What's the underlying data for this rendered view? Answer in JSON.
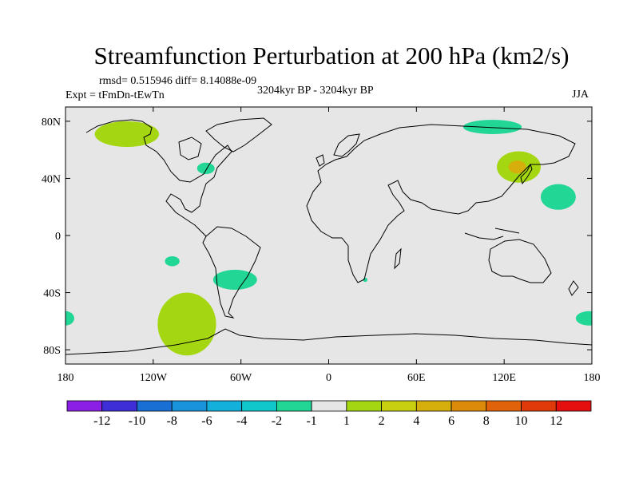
{
  "title": "Streamfunction Perturbation at 200 hPa (km2/s)",
  "stats": "rmsd= 0.515946 diff= 8.14088e-09",
  "experiment": "Expt = tFmDn-tEwTn",
  "period": "3204kyr BP - 3204kyr BP",
  "season": "JJA",
  "map": {
    "projection": "equirectangular",
    "lon_range": [
      -180,
      180
    ],
    "lat_range": [
      -90,
      90
    ],
    "background_color": "#e6e6e6",
    "lat_ticks": [
      {
        "lat": 80,
        "label": "80N"
      },
      {
        "lat": 40,
        "label": "40N"
      },
      {
        "lat": 0,
        "label": "0"
      },
      {
        "lat": -40,
        "label": "40S"
      },
      {
        "lat": -80,
        "label": "80S"
      }
    ],
    "lon_ticks": [
      {
        "lon": -180,
        "label": "180"
      },
      {
        "lon": -120,
        "label": "120W"
      },
      {
        "lon": -60,
        "label": "60W"
      },
      {
        "lon": 0,
        "label": "0"
      },
      {
        "lon": 60,
        "label": "60E"
      },
      {
        "lon": 120,
        "label": "120E"
      },
      {
        "lon": 180,
        "label": "180"
      }
    ],
    "anomalies": [
      {
        "name": "anomaly-alaska",
        "lon": -138,
        "lat": 71,
        "rlon": 22,
        "rlat": 9,
        "color": "#a4d712"
      },
      {
        "name": "anomaly-great-lakes",
        "lon": -84,
        "lat": 47,
        "rlon": 6,
        "rlat": 4,
        "color": "#22d696"
      },
      {
        "name": "anomaly-siberia-north",
        "lon": 112,
        "lat": 76,
        "rlon": 20,
        "rlat": 5,
        "color": "#22d696"
      },
      {
        "name": "anomaly-manchuria",
        "lon": 130,
        "lat": 48,
        "rlon": 15,
        "rlat": 11,
        "color": "#a4d712"
      },
      {
        "name": "anomaly-manchuria-core",
        "lon": 129,
        "lat": 48,
        "rlon": 6,
        "rlat": 4.5,
        "color": "#d6af0c"
      },
      {
        "name": "anomaly-north-pacific",
        "lon": 157,
        "lat": 27,
        "rlon": 12,
        "rlat": 9,
        "color": "#22d696"
      },
      {
        "name": "anomaly-south-pacific-small",
        "lon": -107,
        "lat": -18,
        "rlon": 5,
        "rlat": 3.5,
        "color": "#22d696"
      },
      {
        "name": "anomaly-south-atlantic",
        "lon": -64,
        "lat": -31,
        "rlon": 15,
        "rlat": 7,
        "color": "#22d696"
      },
      {
        "name": "anomaly-southern-africa",
        "lon": 25,
        "lat": -31,
        "rlon": 1.5,
        "rlat": 1.5,
        "color": "#22d696"
      },
      {
        "name": "anomaly-southeast-pacific",
        "lon": -97,
        "lat": -62,
        "rlon": 20,
        "rlat": 22,
        "color": "#a4d712"
      },
      {
        "name": "anomaly-dateline-south-west",
        "lon": -180,
        "lat": -58,
        "rlon": 6,
        "rlat": 5,
        "color": "#22d696"
      },
      {
        "name": "anomaly-dateline-south-east",
        "lon": 178,
        "lat": -58,
        "rlon": 9,
        "rlat": 5,
        "color": "#22d696"
      }
    ]
  },
  "colorbar": {
    "labels": [
      "-12",
      "-10",
      "-8",
      "-6",
      "-4",
      "-2",
      "-1",
      "1",
      "2",
      "4",
      "6",
      "8",
      "10",
      "12"
    ],
    "colors": [
      "#8c1fe6",
      "#3e2ed8",
      "#1a6fd4",
      "#1893dc",
      "#14b0dc",
      "#10c8cc",
      "#22d696",
      "#e6e6e6",
      "#a4d712",
      "#c8cf0e",
      "#d6af0c",
      "#dc8a0a",
      "#e0620a",
      "#e03a0a",
      "#e60f0f"
    ]
  }
}
